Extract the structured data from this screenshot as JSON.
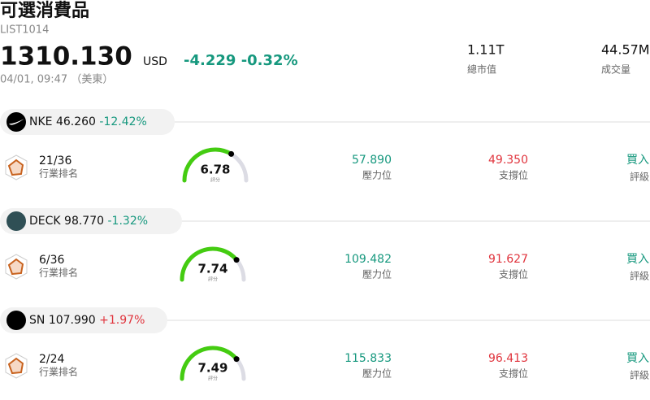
{
  "header": {
    "title": "可選消費品",
    "code": "LIST1014",
    "price": "1310.130",
    "currency": "USD",
    "change": "-4.229",
    "change_pct": "-0.32%",
    "time": "04/01, 09:47 （美東）",
    "stats": [
      {
        "value": "1.11T",
        "label": "總市值"
      },
      {
        "value": "44.57M",
        "label": "成交量"
      }
    ]
  },
  "stocks": [
    {
      "symbol": "NKE",
      "price": "46.260",
      "change_pct": "-12.42%",
      "rank": "21/36",
      "rank_label": "行業排名",
      "score": "6.78",
      "score_label": "評分",
      "resistance": "57.890",
      "resistance_label": "壓力位",
      "support": "49.350",
      "support_label": "支撐位",
      "rating": "買入",
      "rating_label": "評級"
    },
    {
      "symbol": "DECK",
      "price": "98.770",
      "change_pct": "-1.32%",
      "rank": "6/36",
      "rank_label": "行業排名",
      "score": "7.74",
      "score_label": "評分",
      "resistance": "109.482",
      "resistance_label": "壓力位",
      "support": "91.627",
      "support_label": "支撐位",
      "rating": "買入",
      "rating_label": "評級"
    },
    {
      "symbol": "SN",
      "price": "107.990",
      "change_pct": "+1.97%",
      "rank": "2/24",
      "rank_label": "行業排名",
      "score": "7.49",
      "score_label": "評分",
      "resistance": "115.833",
      "resistance_label": "壓力位",
      "support": "96.413",
      "support_label": "支撐位",
      "rating": "買入",
      "rating_label": "評級"
    }
  ]
}
